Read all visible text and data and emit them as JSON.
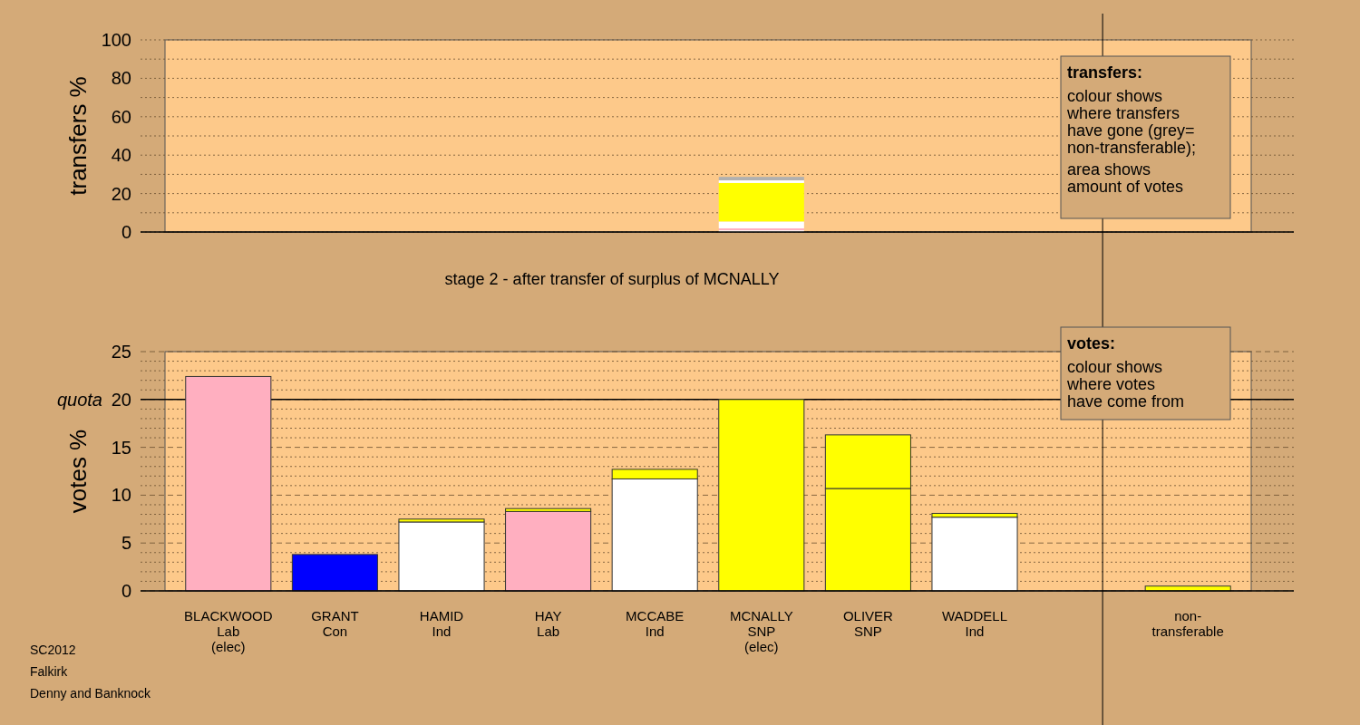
{
  "chart_data": [
    {
      "type": "bar",
      "stacked": true,
      "ylabel": "transfers %",
      "categories": [
        null,
        null,
        null,
        null,
        null,
        null,
        null,
        null,
        null,
        null
      ],
      "ylim": [
        0,
        100
      ],
      "yticks": [
        0,
        {
          "value": 10,
          "label": null
        },
        20,
        {
          "value": 30,
          "label": null
        },
        40,
        {
          "value": 50,
          "label": null
        },
        60,
        {
          "value": 70,
          "label": null
        },
        80,
        {
          "value": 90,
          "label": null
        },
        100
      ],
      "grid": "y",
      "series": [
        {
          "color": "#ffffff",
          "values": [
            null,
            null,
            null,
            null,
            null,
            0.9,
            null,
            null,
            null,
            null
          ]
        },
        {
          "color": "#ffafc0",
          "values": [
            null,
            null,
            null,
            null,
            null,
            1.0,
            null,
            null,
            null,
            null
          ]
        },
        {
          "color": "#ffffff",
          "values": [
            null,
            null,
            null,
            null,
            null,
            3.6,
            null,
            null,
            null,
            null
          ]
        },
        {
          "color": "#ffff00",
          "values": [
            null,
            null,
            null,
            null,
            null,
            20.0,
            null,
            null,
            null,
            null
          ]
        },
        {
          "color": "#ffffff",
          "values": [
            null,
            null,
            null,
            null,
            null,
            1.4,
            null,
            null,
            null,
            null
          ]
        },
        {
          "color": "#b0b0b0",
          "values": [
            null,
            null,
            null,
            null,
            null,
            1.8,
            null,
            null,
            null,
            null
          ]
        }
      ],
      "annotations": [
        "transfers:\ncolour shows\nwhere transfers\nhave gone (grey=\nnon-transferable);\narea shows\namount of votes"
      ]
    },
    {
      "type": "bar",
      "stacked": true,
      "title": "stage 2 - after transfer of surplus of MCNALLY",
      "ylabel": "votes %",
      "categories": [
        "BLACKWOOD\nLab\n(elec)",
        "GRANT\nCon",
        "HAMID\nInd",
        "HAY\nLab",
        "MCCABE\nInd",
        "MCNALLY\nSNP\n(elec)",
        "OLIVER\nSNP",
        "WADDELL\nInd",
        null,
        "non-\ntransferable"
      ],
      "ylim": [
        0,
        25
      ],
      "yticks": [
        0,
        {
          "value": 1,
          "label": null
        },
        {
          "value": 2,
          "label": null
        },
        {
          "value": 3,
          "label": null
        },
        {
          "value": 4,
          "label": null
        },
        5,
        {
          "value": 6,
          "label": null
        },
        {
          "value": 7,
          "label": null
        },
        {
          "value": 8,
          "label": null
        },
        {
          "value": 9,
          "label": null
        },
        10,
        {
          "value": 11,
          "label": null
        },
        {
          "value": 12,
          "label": null
        },
        {
          "value": 13,
          "label": null
        },
        {
          "value": 14,
          "label": null
        },
        15,
        {
          "value": 16,
          "label": null
        },
        {
          "value": 17,
          "label": null
        },
        {
          "value": 18,
          "label": null
        },
        {
          "value": 19,
          "label": null
        },
        20,
        {
          "value": 21,
          "label": null
        },
        {
          "value": 22,
          "label": null
        },
        {
          "value": 23,
          "label": null
        },
        {
          "value": 24,
          "label": null
        },
        25
      ],
      "grid": "y",
      "series": [
        {
          "colors": [
            "#ffafc0",
            "#0000ff",
            "#ffffff",
            "#ffafc0",
            "#ffffff",
            "#ffff00",
            "#ffff00",
            "#ffffff",
            null,
            null
          ],
          "values": [
            22.4,
            3.8,
            7.2,
            8.3,
            11.7,
            20.0,
            10.7,
            7.7,
            null,
            null
          ]
        },
        {
          "color": "#ffff00",
          "values": [
            null,
            null,
            0.3,
            0.3,
            1.0,
            null,
            5.6,
            0.4,
            null,
            0.5
          ]
        }
      ],
      "ref_lines": [
        {
          "axis": "y",
          "value": 20,
          "label": "quota"
        }
      ],
      "annotations": [
        "votes:\ncolour shows\nwhere votes\nhave come from",
        "SC2012\nFalkirk\nDenny and Banknock"
      ]
    }
  ]
}
